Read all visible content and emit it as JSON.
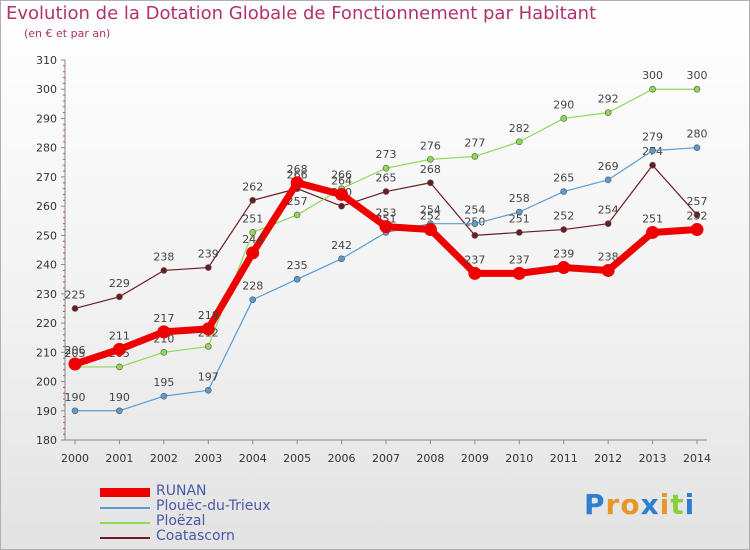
{
  "header": {
    "title": "Evolution de la Dotation Globale de Fonctionnement par Habitant",
    "subtitle": "(en € et par an)"
  },
  "brand": {
    "text": "Proxiti"
  },
  "chart_data": {
    "type": "line",
    "x": [
      "2000",
      "2001",
      "2002",
      "2003",
      "2004",
      "2005",
      "2006",
      "2007",
      "2008",
      "2009",
      "2010",
      "2011",
      "2012",
      "2013",
      "2014"
    ],
    "ylim": [
      180,
      310
    ],
    "yticks": [
      180,
      190,
      200,
      210,
      220,
      230,
      240,
      250,
      260,
      270,
      280,
      290,
      300,
      310
    ],
    "grid": false,
    "series": [
      {
        "name": "Coatascorn",
        "color": "#6b1c22",
        "width": 1.2,
        "values": [
          225,
          229,
          238,
          239,
          262,
          266,
          260,
          265,
          268,
          250,
          251,
          252,
          254,
          274,
          257
        ]
      },
      {
        "name": "Ploëzal",
        "color": "#8ed955",
        "width": 1.2,
        "values": [
          205,
          205,
          210,
          212,
          251,
          257,
          266,
          273,
          276,
          277,
          282,
          290,
          292,
          300,
          300
        ]
      },
      {
        "name": "Plouëc-du-Trieux",
        "color": "#5b9bd0",
        "width": 1.2,
        "values": [
          190,
          190,
          195,
          197,
          228,
          235,
          242,
          251,
          254,
          254,
          258,
          265,
          269,
          279,
          280
        ]
      },
      {
        "name": "RUNAN",
        "color": "#ee0000",
        "width": 7,
        "values": [
          206,
          211,
          217,
          218,
          244,
          268,
          264,
          253,
          252,
          237,
          237,
          239,
          238,
          251,
          252
        ]
      }
    ],
    "legend": [
      {
        "name": "RUNAN",
        "color": "#ee0000"
      },
      {
        "name": "Plouëc-du-Trieux",
        "color": "#5b9bd0"
      },
      {
        "name": "Ploëzal",
        "color": "#8ed955"
      },
      {
        "name": "Coatascorn",
        "color": "#6b1c22"
      }
    ],
    "legend_position": "bottom-left",
    "label_color": "#4a58a8"
  }
}
